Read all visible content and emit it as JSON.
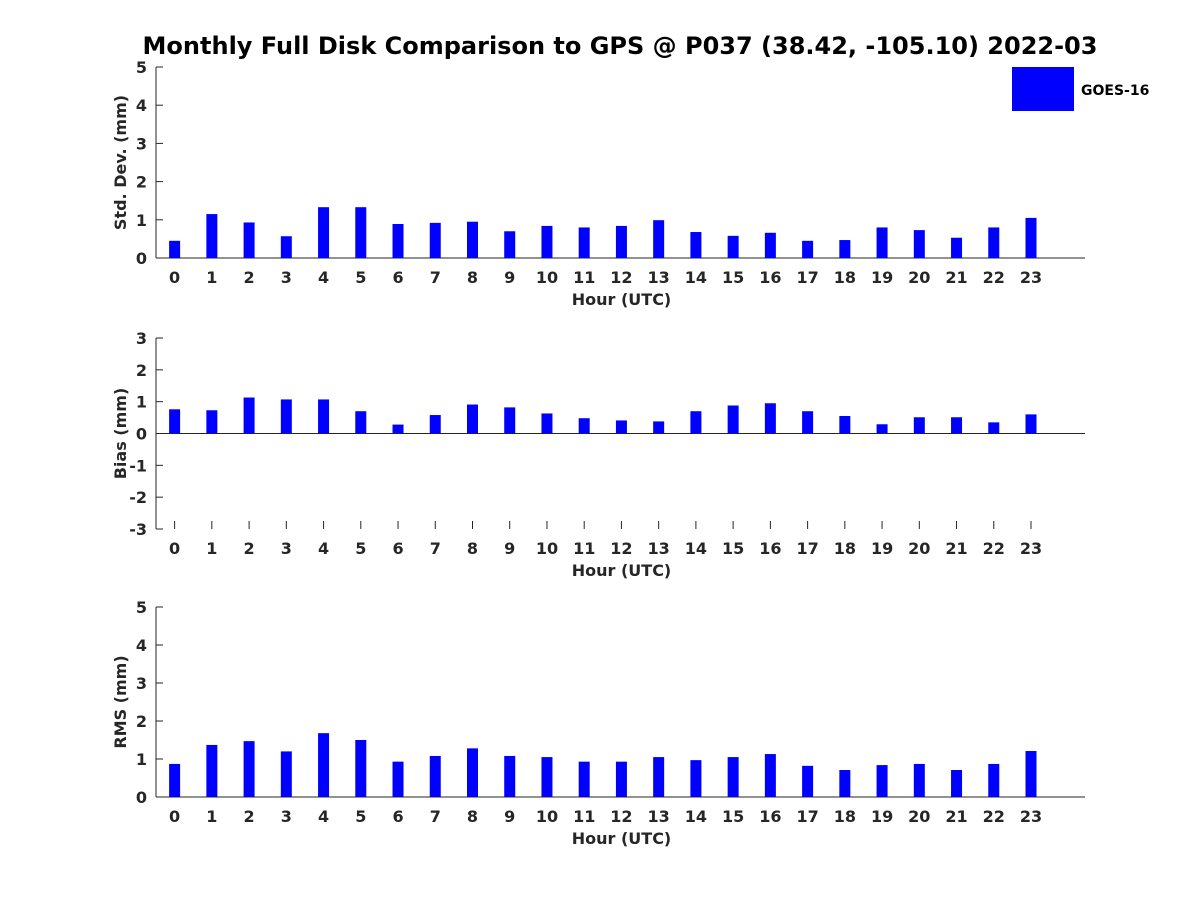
{
  "title": "Monthly Full Disk Comparison to GPS @ P037 (38.42, -105.10) 2022-03",
  "legend": {
    "label": "GOES-16",
    "color": "#0000ff",
    "placement": "top-right"
  },
  "chart_data": [
    {
      "type": "bar",
      "xlabel": "Hour (UTC)",
      "ylabel": "Std. Dev. (mm)",
      "ylim": [
        0,
        5
      ],
      "yticks": [
        "0",
        "1",
        "2",
        "3",
        "4",
        "5"
      ],
      "categories": [
        "0",
        "1",
        "2",
        "3",
        "4",
        "5",
        "6",
        "7",
        "8",
        "9",
        "10",
        "11",
        "12",
        "13",
        "14",
        "15",
        "16",
        "17",
        "18",
        "19",
        "20",
        "21",
        "22",
        "23"
      ],
      "series": [
        {
          "name": "GOES-16",
          "color": "#0000ff",
          "values": [
            0.45,
            1.15,
            0.93,
            0.57,
            1.33,
            1.33,
            0.89,
            0.92,
            0.95,
            0.7,
            0.84,
            0.8,
            0.84,
            0.99,
            0.68,
            0.58,
            0.66,
            0.45,
            0.47,
            0.8,
            0.73,
            0.53,
            0.8,
            1.05
          ]
        }
      ]
    },
    {
      "type": "bar",
      "xlabel": "Hour (UTC)",
      "ylabel": "Bias (mm)",
      "ylim": [
        -3,
        3
      ],
      "yticks": [
        "-3",
        "-2",
        "-1",
        "0",
        "1",
        "2",
        "3"
      ],
      "categories": [
        "0",
        "1",
        "2",
        "3",
        "4",
        "5",
        "6",
        "7",
        "8",
        "9",
        "10",
        "11",
        "12",
        "13",
        "14",
        "15",
        "16",
        "17",
        "18",
        "19",
        "20",
        "21",
        "22",
        "23"
      ],
      "series": [
        {
          "name": "GOES-16",
          "color": "#0000ff",
          "values": [
            0.76,
            0.73,
            1.13,
            1.07,
            1.07,
            0.7,
            0.28,
            0.58,
            0.91,
            0.82,
            0.63,
            0.48,
            0.41,
            0.38,
            0.7,
            0.88,
            0.95,
            0.7,
            0.55,
            0.29,
            0.51,
            0.51,
            0.35,
            0.6
          ]
        }
      ]
    },
    {
      "type": "bar",
      "xlabel": "Hour (UTC)",
      "ylabel": "RMS (mm)",
      "ylim": [
        0,
        5
      ],
      "yticks": [
        "0",
        "1",
        "2",
        "3",
        "4",
        "5"
      ],
      "categories": [
        "0",
        "1",
        "2",
        "3",
        "4",
        "5",
        "6",
        "7",
        "8",
        "9",
        "10",
        "11",
        "12",
        "13",
        "14",
        "15",
        "16",
        "17",
        "18",
        "19",
        "20",
        "21",
        "22",
        "23"
      ],
      "series": [
        {
          "name": "GOES-16",
          "color": "#0000ff",
          "values": [
            0.87,
            1.37,
            1.47,
            1.2,
            1.68,
            1.5,
            0.93,
            1.08,
            1.28,
            1.08,
            1.05,
            0.93,
            0.93,
            1.05,
            0.97,
            1.05,
            1.13,
            0.82,
            0.71,
            0.84,
            0.87,
            0.71,
            0.87,
            1.21
          ]
        }
      ]
    }
  ]
}
